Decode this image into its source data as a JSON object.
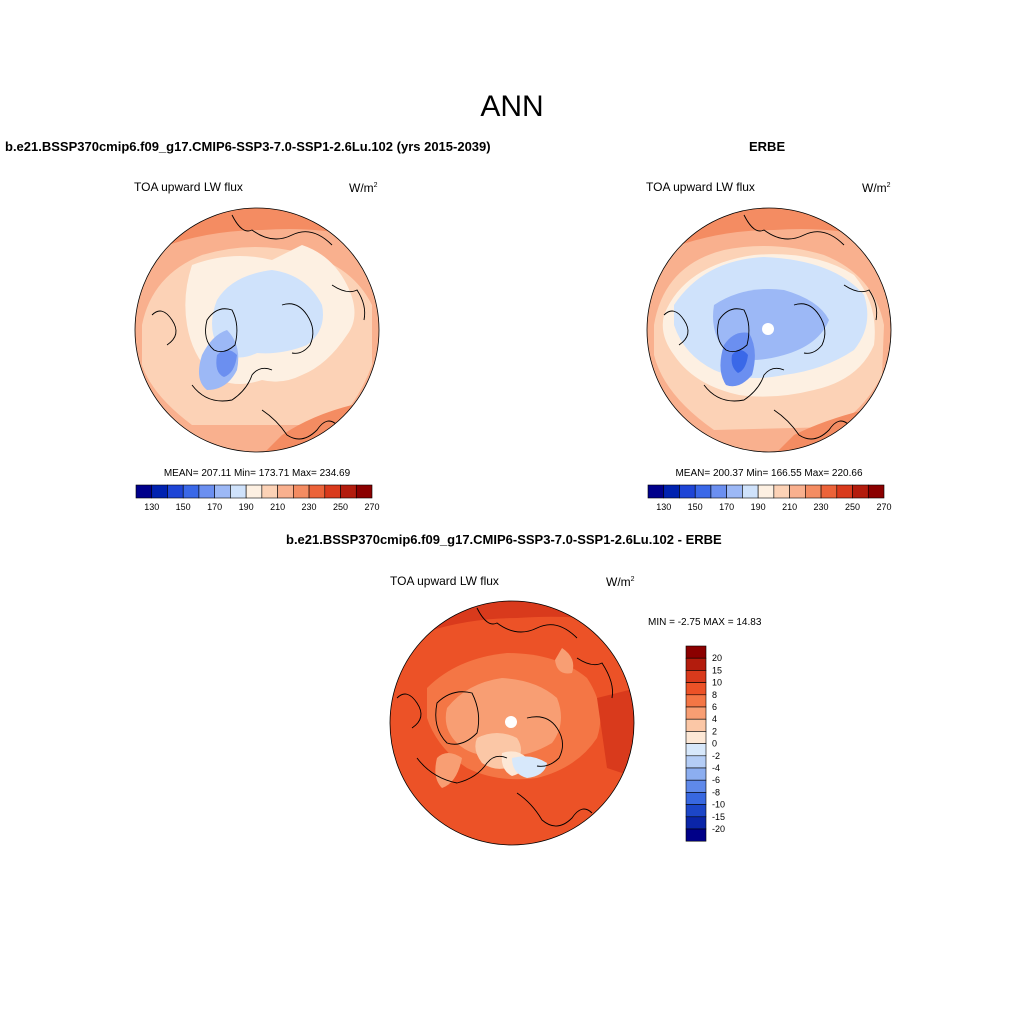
{
  "main_title": "ANN",
  "panels": [
    {
      "title": "b.e21.BSSP370cmip6.f09_g17.CMIP6-SSP3-7.0-SSP1-2.6Lu.102 (yrs 2015-2039)",
      "variable": "TOA upward LW flux",
      "units": "W/m",
      "units_exp": "2",
      "stats": "MEAN= 207.11  Min= 173.71  Max= 234.69",
      "colorbar_ticks": [
        "130",
        "150",
        "170",
        "190",
        "210",
        "230",
        "250",
        "270"
      ]
    },
    {
      "title": "ERBE",
      "variable": "TOA upward LW flux",
      "units": "W/m",
      "units_exp": "2",
      "stats": "MEAN= 200.37  Min= 166.55  Max= 220.66",
      "colorbar_ticks": [
        "130",
        "150",
        "170",
        "190",
        "210",
        "230",
        "250",
        "270"
      ]
    },
    {
      "title": "b.e21.BSSP370cmip6.f09_g17.CMIP6-SSP3-7.0-SSP1-2.6Lu.102 - ERBE",
      "variable": "TOA upward LW flux",
      "units": "W/m",
      "units_exp": "2",
      "stats": "MIN =  -2.75 MAX =  14.83",
      "colorbar_ticks": [
        "20",
        "15",
        "10",
        "8",
        "6",
        "4",
        "2",
        "0",
        "-2",
        "-4",
        "-6",
        "-8",
        "-10",
        "-15",
        "-20"
      ]
    }
  ],
  "colors": {
    "abs_scale": [
      "#00008b",
      "#0022b0",
      "#1e45d6",
      "#3a68e8",
      "#6b8ff0",
      "#9cb8f6",
      "#cfe2fb",
      "#fdf0e2",
      "#fcd2b6",
      "#f9b08e",
      "#f48c62",
      "#ec6339",
      "#d93a1c",
      "#b31c0d",
      "#8b0000"
    ],
    "diff_scale": [
      "#8b0000",
      "#b31c0d",
      "#d93a1c",
      "#ec5227",
      "#f47645",
      "#f89e73",
      "#fbc7a6",
      "#fde8d6",
      "#d7e8fb",
      "#b4cdf6",
      "#8caef0",
      "#5f89ea",
      "#3868e0",
      "#1c46c8",
      "#0a25a8",
      "#000088"
    ]
  }
}
